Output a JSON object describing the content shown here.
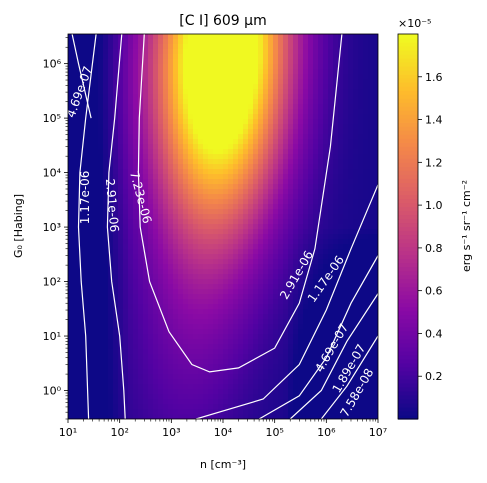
{
  "chart_data": {
    "type": "heatmap",
    "title": "[C I] 609 μm",
    "xlabel": "n [cm⁻³]",
    "ylabel": "G₀ [Habing]",
    "x_scale": "log",
    "y_scale": "log",
    "xlim": [
      10,
      10000000
    ],
    "ylim": [
      0.3,
      3500000
    ],
    "x_ticks": [
      {
        "value": 10,
        "label": "10¹"
      },
      {
        "value": 100,
        "label": "10²"
      },
      {
        "value": 1000,
        "label": "10³"
      },
      {
        "value": 10000,
        "label": "10⁴"
      },
      {
        "value": 100000,
        "label": "10⁵"
      },
      {
        "value": 1000000,
        "label": "10⁶"
      },
      {
        "value": 10000000,
        "label": "10⁷"
      }
    ],
    "y_ticks": [
      {
        "value": 1,
        "label": "10⁰"
      },
      {
        "value": 10,
        "label": "10¹"
      },
      {
        "value": 100,
        "label": "10²"
      },
      {
        "value": 1000,
        "label": "10³"
      },
      {
        "value": 10000,
        "label": "10⁴"
      },
      {
        "value": 100000,
        "label": "10⁵"
      },
      {
        "value": 1000000,
        "label": "10⁶"
      }
    ],
    "colormap": "plasma",
    "colorbar": {
      "label": "erg s⁻¹ sr⁻¹ cm⁻²",
      "multiplier": "×10⁻⁵",
      "range": [
        0.0,
        1.8
      ],
      "ticks": [
        "0.2",
        "0.4",
        "0.6",
        "0.8",
        "1.0",
        "1.2",
        "1.4",
        "1.6"
      ]
    },
    "contour_levels": [
      "7.58e-08",
      "1.89e-07",
      "4.69e-07",
      "1.17e-06",
      "2.91e-06",
      "7.23e-06"
    ],
    "grid": false,
    "legend": "none"
  },
  "colors": {
    "contour": "#ffffff",
    "contour_label": "#ffffff",
    "axes": "#000000"
  }
}
